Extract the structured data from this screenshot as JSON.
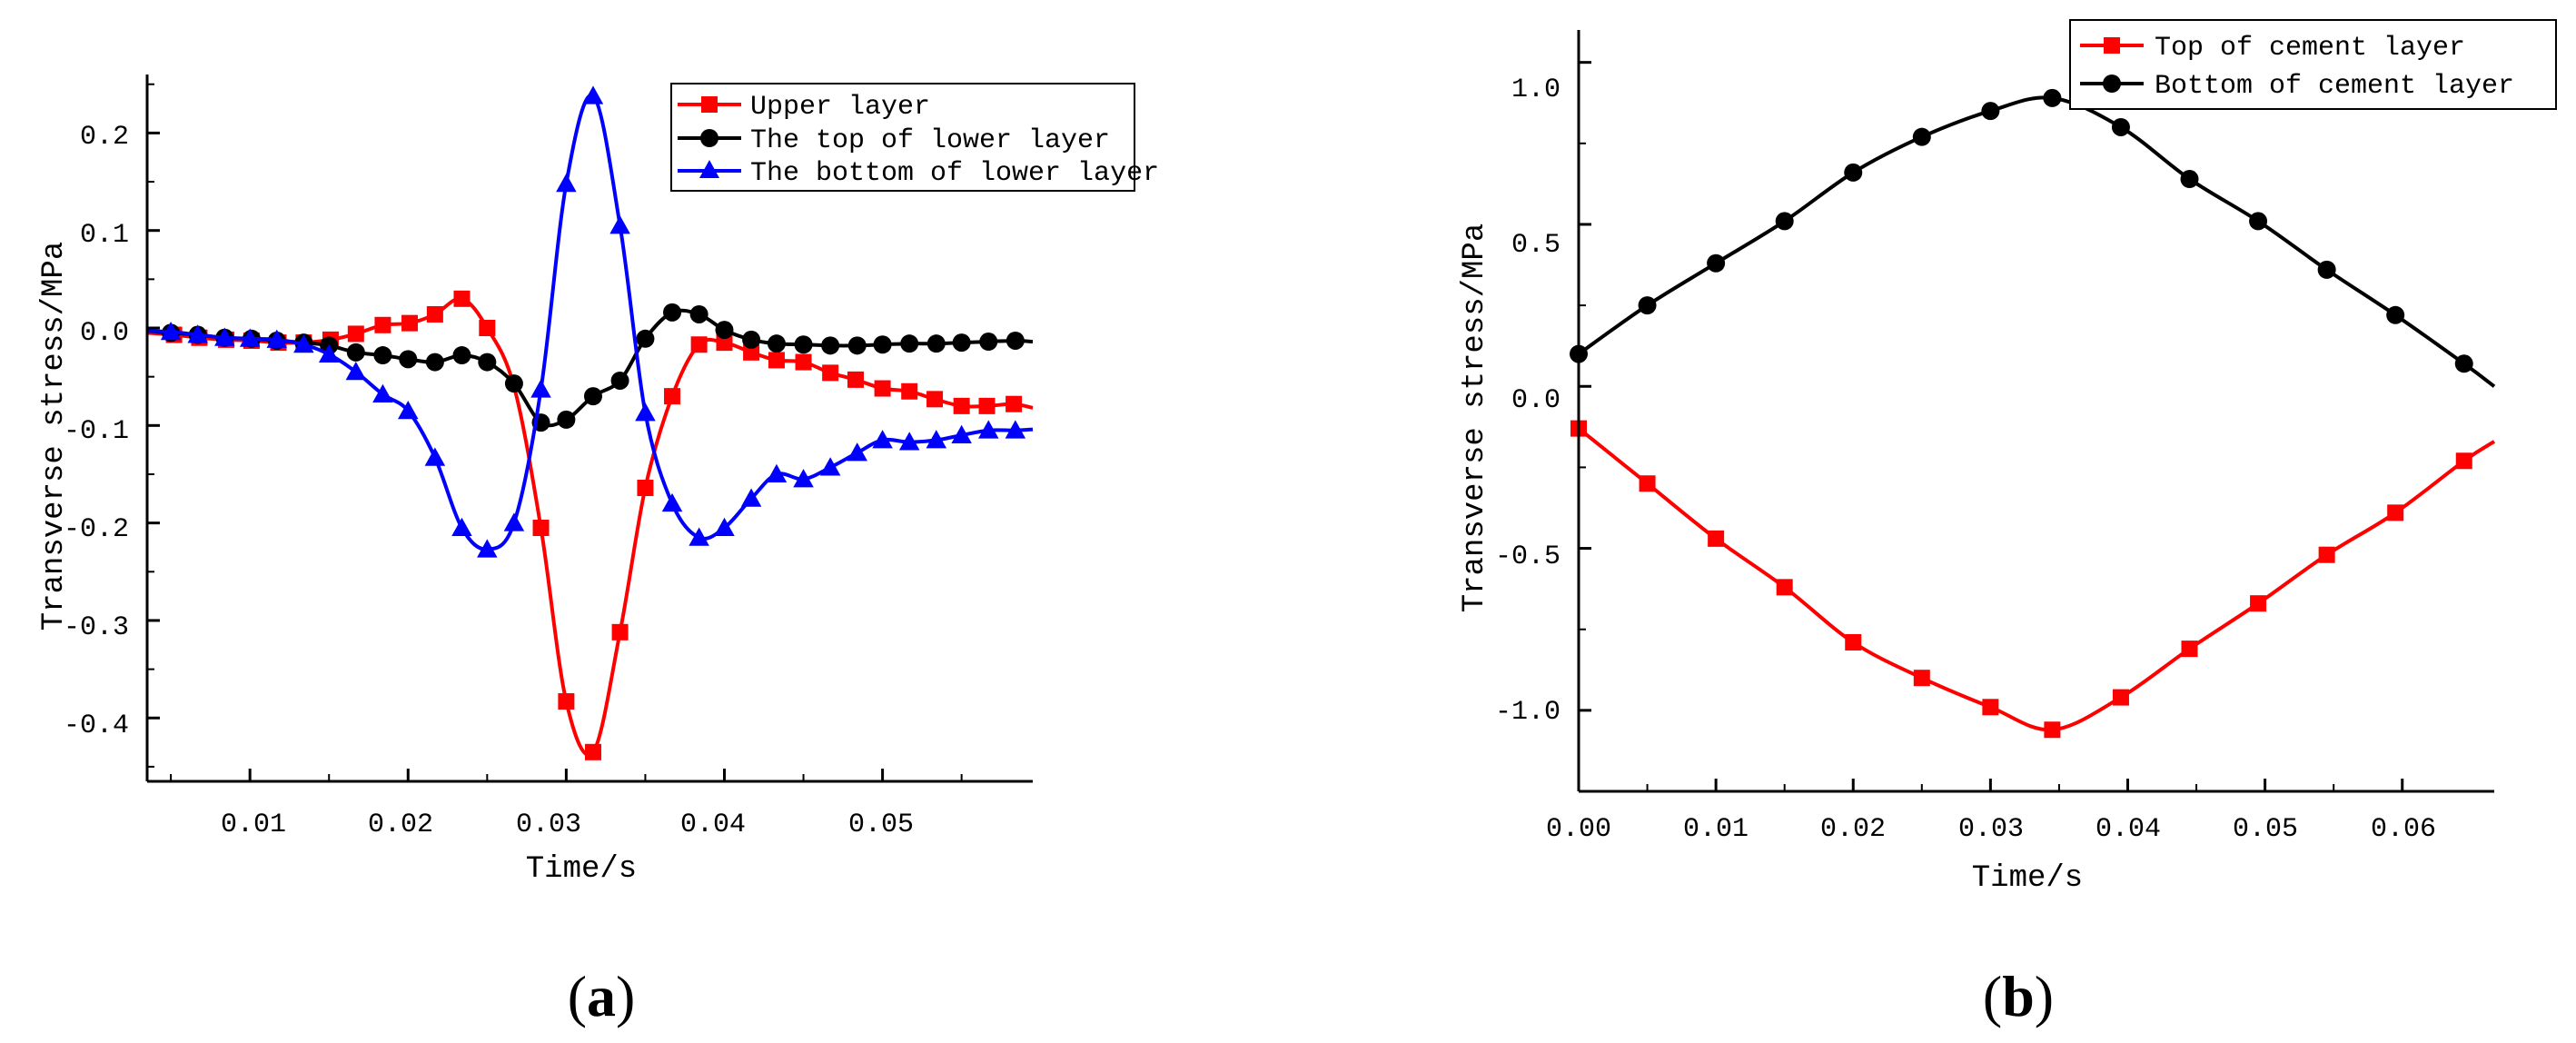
{
  "chart_data": [
    {
      "type": "line",
      "panel": "a",
      "panel_label_open": "(",
      "panel_label_letter": "a",
      "panel_label_close": ")",
      "xlabel": "Time/s",
      "ylabel": "Transverse stress/MPa",
      "xlim": [
        0.0035,
        0.0595
      ],
      "ylim": [
        -0.465,
        0.26
      ],
      "x_ticks": [
        {
          "value": 0.01,
          "label": "0.01"
        },
        {
          "value": 0.02,
          "label": "0.02"
        },
        {
          "value": 0.03,
          "label": "0.03"
        },
        {
          "value": 0.04,
          "label": "0.04"
        },
        {
          "value": 0.05,
          "label": "0.05"
        }
      ],
      "y_ticks": [
        {
          "value": 0.2,
          "label": "0.2"
        },
        {
          "value": 0.1,
          "label": "0.1"
        },
        {
          "value": 0.0,
          "label": "0.0"
        },
        {
          "value": -0.1,
          "label": "-0.1"
        },
        {
          "value": -0.2,
          "label": "-0.2"
        },
        {
          "value": -0.3,
          "label": "-0.3"
        },
        {
          "value": -0.4,
          "label": "-0.4"
        }
      ],
      "legend_position": "top-right",
      "series": [
        {
          "name": "Upper layer",
          "color": "#ff0000",
          "marker": "square",
          "x": [
            0.0035,
            0.0052,
            0.0068,
            0.0085,
            0.0101,
            0.0118,
            0.0134,
            0.0151,
            0.0167,
            0.0184,
            0.0201,
            0.0217,
            0.0234,
            0.025,
            0.0267,
            0.0284,
            0.03,
            0.0317,
            0.0334,
            0.035,
            0.0367,
            0.0384,
            0.04,
            0.0417,
            0.0433,
            0.045,
            0.0467,
            0.0483,
            0.05,
            0.0517,
            0.0533,
            0.055,
            0.0566,
            0.0583,
            0.0595
          ],
          "y": [
            -0.005,
            -0.007,
            -0.01,
            -0.012,
            -0.013,
            -0.015,
            -0.015,
            -0.012,
            -0.006,
            0.003,
            0.005,
            0.014,
            0.03,
            0.0,
            -0.06,
            -0.205,
            -0.383,
            -0.435,
            -0.312,
            -0.164,
            -0.07,
            -0.017,
            -0.015,
            -0.025,
            -0.033,
            -0.035,
            -0.046,
            -0.053,
            -0.062,
            -0.065,
            -0.073,
            -0.08,
            -0.08,
            -0.078,
            -0.082
          ],
          "marker_x": [
            0.0052,
            0.0068,
            0.0085,
            0.0101,
            0.0118,
            0.0134,
            0.0151,
            0.0167,
            0.0184,
            0.0201,
            0.0217,
            0.0234,
            0.025,
            0.0284,
            0.03,
            0.0317,
            0.0334,
            0.035,
            0.0367,
            0.0384,
            0.04,
            0.0417,
            0.0433,
            0.045,
            0.0467,
            0.0483,
            0.05,
            0.0517,
            0.0533,
            0.055,
            0.0566,
            0.0583
          ],
          "marker_y": [
            -0.007,
            -0.01,
            -0.012,
            -0.013,
            -0.015,
            -0.015,
            -0.012,
            -0.006,
            0.003,
            0.005,
            0.014,
            0.03,
            0.0,
            -0.205,
            -0.383,
            -0.435,
            -0.312,
            -0.164,
            -0.07,
            -0.017,
            -0.015,
            -0.025,
            -0.033,
            -0.035,
            -0.046,
            -0.053,
            -0.062,
            -0.065,
            -0.073,
            -0.08,
            -0.08,
            -0.078
          ]
        },
        {
          "name": "The top of lower layer",
          "color": "#000000",
          "marker": "circle",
          "x": [
            0.0035,
            0.005,
            0.0067,
            0.0084,
            0.0101,
            0.0117,
            0.0134,
            0.015,
            0.0167,
            0.0184,
            0.02,
            0.0217,
            0.0234,
            0.025,
            0.0267,
            0.0284,
            0.03,
            0.0317,
            0.0334,
            0.035,
            0.0367,
            0.0384,
            0.04,
            0.0417,
            0.0433,
            0.045,
            0.0467,
            0.0484,
            0.05,
            0.0517,
            0.0534,
            0.055,
            0.0567,
            0.0584,
            0.0595
          ],
          "y": [
            -0.003,
            -0.005,
            -0.007,
            -0.01,
            -0.011,
            -0.013,
            -0.015,
            -0.018,
            -0.025,
            -0.028,
            -0.032,
            -0.035,
            -0.028,
            -0.035,
            -0.057,
            -0.097,
            -0.094,
            -0.07,
            -0.054,
            -0.011,
            0.016,
            0.014,
            -0.002,
            -0.012,
            -0.016,
            -0.017,
            -0.018,
            -0.018,
            -0.017,
            -0.016,
            -0.016,
            -0.015,
            -0.014,
            -0.013,
            -0.014
          ],
          "marker_x": [
            0.005,
            0.0067,
            0.0084,
            0.0101,
            0.0117,
            0.0134,
            0.015,
            0.0167,
            0.0184,
            0.02,
            0.0217,
            0.0234,
            0.025,
            0.0267,
            0.0284,
            0.03,
            0.0317,
            0.0334,
            0.035,
            0.0367,
            0.0384,
            0.04,
            0.0417,
            0.0433,
            0.045,
            0.0467,
            0.0484,
            0.05,
            0.0517,
            0.0534,
            0.055,
            0.0567,
            0.0584
          ],
          "marker_y": [
            -0.005,
            -0.007,
            -0.01,
            -0.011,
            -0.013,
            -0.015,
            -0.018,
            -0.025,
            -0.028,
            -0.032,
            -0.035,
            -0.028,
            -0.035,
            -0.057,
            -0.097,
            -0.094,
            -0.07,
            -0.054,
            -0.011,
            0.016,
            0.014,
            -0.002,
            -0.012,
            -0.016,
            -0.017,
            -0.018,
            -0.018,
            -0.017,
            -0.016,
            -0.016,
            -0.015,
            -0.014,
            -0.013
          ]
        },
        {
          "name": "The bottom of lower layer",
          "color": "#0000ff",
          "marker": "triangle",
          "x": [
            0.0035,
            0.005,
            0.0067,
            0.0084,
            0.01,
            0.0117,
            0.0134,
            0.015,
            0.0167,
            0.0184,
            0.02,
            0.0217,
            0.0234,
            0.025,
            0.0267,
            0.0284,
            0.03,
            0.0317,
            0.0334,
            0.035,
            0.0367,
            0.0384,
            0.04,
            0.0417,
            0.0433,
            0.045,
            0.0467,
            0.0484,
            0.05,
            0.0517,
            0.0534,
            0.055,
            0.0567,
            0.0584,
            0.0595
          ],
          "y": [
            -0.003,
            -0.004,
            -0.007,
            -0.01,
            -0.011,
            -0.012,
            -0.017,
            -0.027,
            -0.045,
            -0.068,
            -0.085,
            -0.133,
            -0.205,
            -0.227,
            -0.2,
            -0.063,
            0.148,
            0.238,
            0.105,
            -0.087,
            -0.18,
            -0.215,
            -0.205,
            -0.175,
            -0.15,
            -0.155,
            -0.143,
            -0.128,
            -0.115,
            -0.117,
            -0.115,
            -0.11,
            -0.105,
            -0.105,
            -0.104
          ],
          "marker_x": [
            0.005,
            0.0067,
            0.0084,
            0.01,
            0.0117,
            0.0134,
            0.015,
            0.0167,
            0.0184,
            0.02,
            0.0217,
            0.0234,
            0.025,
            0.0267,
            0.0284,
            0.03,
            0.0317,
            0.0334,
            0.035,
            0.0367,
            0.0384,
            0.04,
            0.0417,
            0.0433,
            0.045,
            0.0467,
            0.0484,
            0.05,
            0.0517,
            0.0534,
            0.055,
            0.0567,
            0.0584
          ],
          "marker_y": [
            -0.004,
            -0.007,
            -0.01,
            -0.011,
            -0.012,
            -0.017,
            -0.027,
            -0.045,
            -0.068,
            -0.085,
            -0.133,
            -0.205,
            -0.227,
            -0.2,
            -0.063,
            0.148,
            0.238,
            0.105,
            -0.087,
            -0.18,
            -0.215,
            -0.205,
            -0.175,
            -0.15,
            -0.155,
            -0.143,
            -0.128,
            -0.115,
            -0.117,
            -0.115,
            -0.11,
            -0.105,
            -0.105
          ]
        }
      ]
    },
    {
      "type": "line",
      "panel": "b",
      "panel_label_open": "(",
      "panel_label_letter": "b",
      "panel_label_close": ")",
      "xlabel": "Time/s",
      "ylabel": "Transverse stress/MPa",
      "xlim": [
        0.0,
        0.0667
      ],
      "ylim": [
        -1.25,
        1.1
      ],
      "x_ticks": [
        {
          "value": 0.0,
          "label": "0.00"
        },
        {
          "value": 0.01,
          "label": "0.01"
        },
        {
          "value": 0.02,
          "label": "0.02"
        },
        {
          "value": 0.03,
          "label": "0.03"
        },
        {
          "value": 0.04,
          "label": "0.04"
        },
        {
          "value": 0.05,
          "label": "0.05"
        },
        {
          "value": 0.06,
          "label": "0.06"
        }
      ],
      "y_ticks": [
        {
          "value": 1.0,
          "label": "1.0"
        },
        {
          "value": 0.5,
          "label": "0.5"
        },
        {
          "value": 0.0,
          "label": "0.0"
        },
        {
          "value": -0.5,
          "label": "-0.5"
        },
        {
          "value": -1.0,
          "label": "-1.0"
        }
      ],
      "legend_position": "top-right",
      "series": [
        {
          "name": "Top of cement layer",
          "color": "#ff0000",
          "marker": "square",
          "x": [
            0.0,
            0.005,
            0.01,
            0.015,
            0.02,
            0.025,
            0.03,
            0.0345,
            0.0395,
            0.0445,
            0.0495,
            0.0545,
            0.0595,
            0.0645,
            0.0667
          ],
          "y": [
            -0.13,
            -0.3,
            -0.47,
            -0.62,
            -0.79,
            -0.9,
            -0.99,
            -1.06,
            -0.96,
            -0.81,
            -0.67,
            -0.52,
            -0.39,
            -0.23,
            -0.17
          ],
          "marker_x": [
            0.0,
            0.005,
            0.01,
            0.015,
            0.02,
            0.025,
            0.03,
            0.0345,
            0.0395,
            0.0445,
            0.0495,
            0.0545,
            0.0595,
            0.0645
          ],
          "marker_y": [
            -0.13,
            -0.3,
            -0.47,
            -0.62,
            -0.79,
            -0.9,
            -0.99,
            -1.06,
            -0.96,
            -0.81,
            -0.67,
            -0.52,
            -0.39,
            -0.23
          ]
        },
        {
          "name": "Bottom of cement layer",
          "color": "#000000",
          "marker": "circle",
          "x": [
            0.0,
            0.005,
            0.01,
            0.015,
            0.02,
            0.025,
            0.03,
            0.0345,
            0.0395,
            0.0445,
            0.0495,
            0.0545,
            0.0595,
            0.0645,
            0.0667
          ],
          "y": [
            0.1,
            0.25,
            0.38,
            0.51,
            0.66,
            0.77,
            0.85,
            0.89,
            0.8,
            0.64,
            0.51,
            0.36,
            0.22,
            0.07,
            0.0
          ],
          "marker_x": [
            0.0,
            0.005,
            0.01,
            0.015,
            0.02,
            0.025,
            0.03,
            0.0345,
            0.0395,
            0.0445,
            0.0495,
            0.0545,
            0.0595,
            0.0645
          ],
          "marker_y": [
            0.1,
            0.25,
            0.38,
            0.51,
            0.66,
            0.77,
            0.85,
            0.89,
            0.8,
            0.64,
            0.51,
            0.36,
            0.22,
            0.07
          ]
        }
      ]
    }
  ]
}
